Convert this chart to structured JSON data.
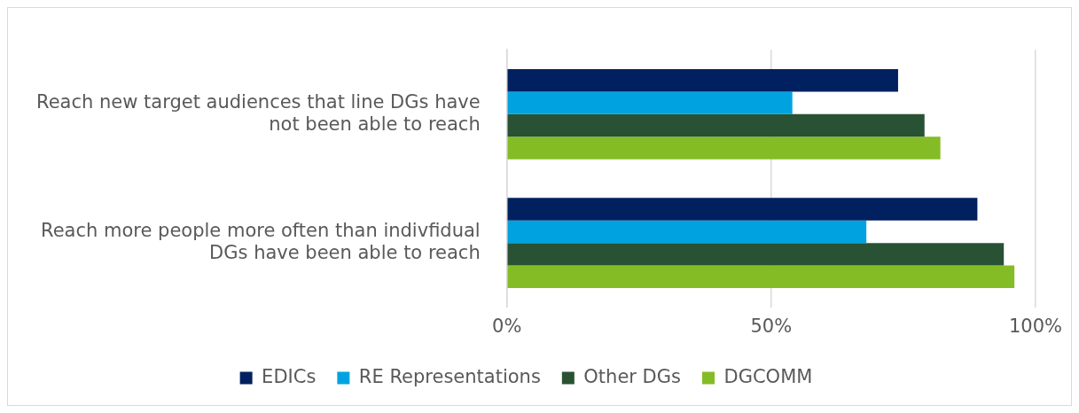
{
  "chart_data": {
    "type": "bar",
    "orientation": "horizontal",
    "categories": [
      "Reach new target audiences that line DGs have not been able to reach",
      "Reach more people more often than indivfidual DGs have been able to reach"
    ],
    "series": [
      {
        "name": "EDICs",
        "color": "#002060",
        "values": [
          74,
          89
        ]
      },
      {
        "name": "RE Representations",
        "color": "#00a3e0",
        "values": [
          54,
          68
        ]
      },
      {
        "name": "Other DGs",
        "color": "#285233",
        "values": [
          79,
          94
        ]
      },
      {
        "name": "DGCOMM",
        "color": "#84bc26",
        "values": [
          82,
          96
        ]
      }
    ],
    "xlim": [
      0,
      100
    ],
    "xticks": [
      {
        "value": 0,
        "label": "0%"
      },
      {
        "value": 50,
        "label": "50%"
      },
      {
        "value": 100,
        "label": "100%"
      }
    ],
    "grid": "x",
    "legend": "bottom"
  }
}
